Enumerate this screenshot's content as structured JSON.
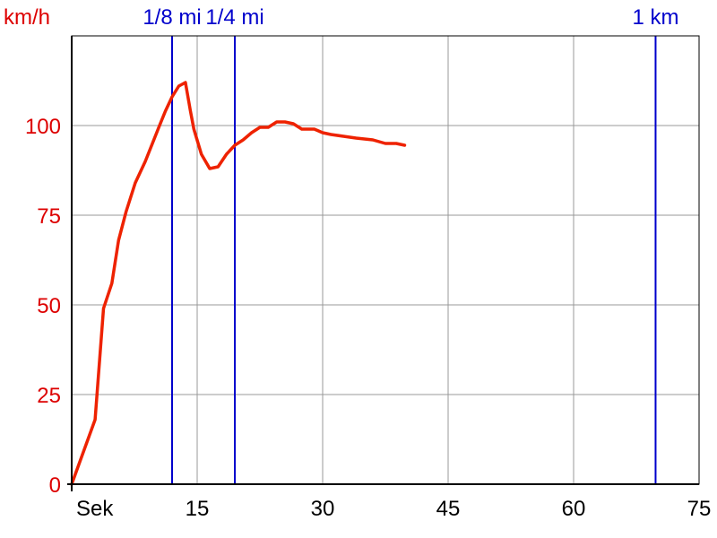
{
  "chart_data": {
    "type": "line",
    "ylabel": "km/h",
    "xlabel": "Sek",
    "xlim": [
      0,
      75
    ],
    "ylim": [
      0,
      125
    ],
    "x_ticks": [
      15,
      30,
      45,
      60,
      75
    ],
    "y_ticks": [
      0,
      25,
      50,
      75,
      100
    ],
    "grid": true,
    "series": [
      {
        "color": "#ee2200",
        "x": [
          0,
          2.8,
          3.8,
          4.8,
          5.6,
          6.5,
          7.6,
          8.8,
          10.5,
          11.2,
          12,
          12.8,
          13.6,
          14.2,
          14.6,
          15.5,
          16.5,
          17.5,
          18.5,
          19.5,
          20.5,
          21.5,
          22.5,
          23.5,
          24.5,
          25.5,
          26.5,
          27.5,
          29,
          30,
          31,
          32.5,
          34,
          36,
          37.5,
          38.8,
          39.8
        ],
        "y": [
          0,
          18,
          49,
          56,
          68,
          76,
          84,
          90,
          100,
          104,
          108,
          111,
          112,
          104,
          99,
          92,
          88,
          88.5,
          92,
          94.5,
          96,
          98,
          99.5,
          99.5,
          101,
          101,
          100.5,
          99,
          99,
          98,
          97.5,
          97,
          96.5,
          96,
          95,
          95,
          94.5
        ]
      }
    ],
    "markers": [
      {
        "label": "1/8 mi",
        "x": 12,
        "color": "#0000cc"
      },
      {
        "label": "1/4 mi",
        "x": 19.5,
        "color": "#0000cc"
      },
      {
        "label": "1 km",
        "x": 69.8,
        "color": "#0000cc"
      }
    ]
  }
}
